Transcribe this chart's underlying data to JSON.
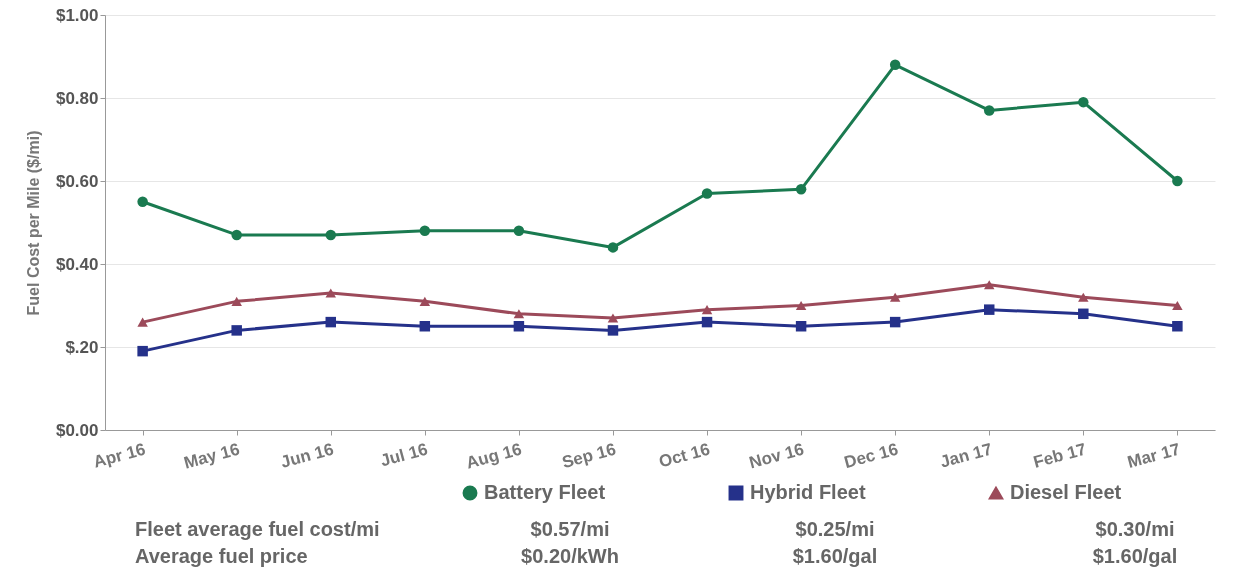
{
  "chart_data": {
    "type": "line",
    "ylabel": "Fuel Cost per Mile ($/mi)",
    "categories": [
      "Apr 16",
      "May 16",
      "Jun 16",
      "Jul 16",
      "Aug 16",
      "Sep 16",
      "Oct 16",
      "Nov 16",
      "Dec 16",
      "Jan 17",
      "Feb 17",
      "Mar 17"
    ],
    "series": [
      {
        "name": "Battery Fleet",
        "color": "#1a7a50",
        "marker": "circle",
        "values": [
          0.55,
          0.47,
          0.47,
          0.48,
          0.48,
          0.44,
          0.57,
          0.58,
          0.88,
          0.77,
          0.79,
          0.6
        ]
      },
      {
        "name": "Hybrid Fleet",
        "color": "#25318a",
        "marker": "square",
        "values": [
          0.19,
          0.24,
          0.26,
          0.25,
          0.25,
          0.24,
          0.26,
          0.25,
          0.26,
          0.29,
          0.28,
          0.25
        ]
      },
      {
        "name": "Diesel Fleet",
        "color": "#9c4a5a",
        "marker": "triangle",
        "values": [
          0.26,
          0.31,
          0.33,
          0.31,
          0.28,
          0.27,
          0.29,
          0.3,
          0.32,
          0.35,
          0.32,
          0.3
        ]
      }
    ],
    "ylim": [
      0,
      1
    ],
    "yticks": [
      {
        "value": 0,
        "label": "$0.00"
      },
      {
        "value": 0.2,
        "label": "$.20"
      },
      {
        "value": 0.4,
        "label": "$0.40"
      },
      {
        "value": 0.6,
        "label": "$0.60"
      },
      {
        "value": 0.8,
        "label": "$0.80"
      },
      {
        "value": 1,
        "label": "$1.00"
      }
    ],
    "grid": "y",
    "legend": "bottom",
    "line_style": "solid",
    "annotations": [
      "Fleet average fuel cost/mi",
      "$0.57/mi",
      "$0.25/mi",
      "$0.30/mi",
      "Average fuel price",
      "$0.20/kWh",
      "$1.60/gal",
      "$1.60/gal"
    ]
  }
}
